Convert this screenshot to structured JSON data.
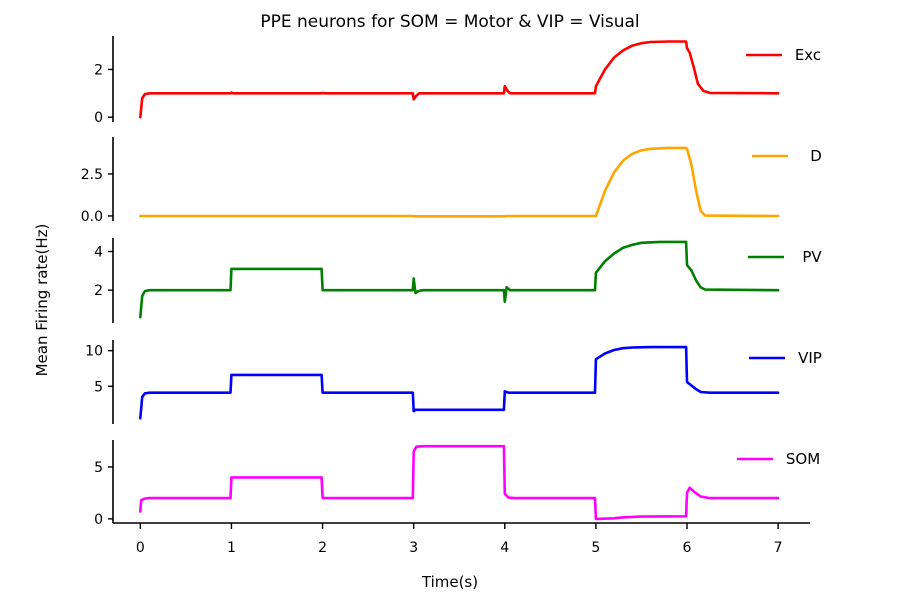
{
  "chart_data": {
    "type": "line",
    "title": "PPE neurons for SOM = Motor & VIP = Visual",
    "xlabel": "Time(s)",
    "ylabel": "Mean Firing rate(Hz)",
    "xlim": [
      -0.3,
      7.35
    ],
    "xticks": [
      0,
      1,
      2,
      3,
      4,
      5,
      6,
      7
    ],
    "xtick_labels": [
      "0",
      "1",
      "2",
      "3",
      "4",
      "5",
      "6",
      "7"
    ],
    "grid": false,
    "legend_position": "top-right of each panel",
    "panels": [
      {
        "name": "Exc",
        "color": "#ff0000",
        "ylim": [
          -0.2,
          3.4
        ],
        "yticks": [
          0,
          2
        ],
        "ytick_labels": [
          "0",
          "2"
        ],
        "points": [
          [
            0,
            0
          ],
          [
            0.02,
            0.8
          ],
          [
            0.05,
            0.97
          ],
          [
            0.1,
            1.0
          ],
          [
            0.99,
            1.0
          ],
          [
            1.0,
            1.03
          ],
          [
            1.02,
            1.0
          ],
          [
            1.99,
            1.0
          ],
          [
            2.0,
            1.02
          ],
          [
            2.02,
            1.0
          ],
          [
            2.99,
            1.0
          ],
          [
            3.0,
            0.75
          ],
          [
            3.03,
            0.9
          ],
          [
            3.06,
            1.0
          ],
          [
            3.99,
            1.0
          ],
          [
            4.0,
            1.3
          ],
          [
            4.03,
            1.1
          ],
          [
            4.06,
            1.0
          ],
          [
            4.99,
            1.0
          ],
          [
            5.0,
            1.3
          ],
          [
            5.1,
            2.0
          ],
          [
            5.2,
            2.5
          ],
          [
            5.3,
            2.8
          ],
          [
            5.4,
            3.0
          ],
          [
            5.5,
            3.1
          ],
          [
            5.6,
            3.15
          ],
          [
            5.8,
            3.17
          ],
          [
            5.99,
            3.17
          ],
          [
            6.0,
            2.9
          ],
          [
            6.03,
            2.7
          ],
          [
            6.08,
            2.0
          ],
          [
            6.12,
            1.4
          ],
          [
            6.18,
            1.1
          ],
          [
            6.25,
            1.02
          ],
          [
            7.0,
            1.0
          ]
        ]
      },
      {
        "name": "D",
        "color": "#ffa500",
        "ylim": [
          -0.3,
          4.7
        ],
        "yticks": [
          0.0,
          2.5
        ],
        "ytick_labels": [
          "0.0",
          "2.5"
        ],
        "points": [
          [
            0,
            0
          ],
          [
            2.99,
            0
          ],
          [
            3.0,
            -0.02
          ],
          [
            4.0,
            -0.02
          ],
          [
            4.01,
            0
          ],
          [
            5.0,
            0
          ],
          [
            5.1,
            1.5
          ],
          [
            5.2,
            2.6
          ],
          [
            5.3,
            3.3
          ],
          [
            5.4,
            3.7
          ],
          [
            5.5,
            3.9
          ],
          [
            5.6,
            4.0
          ],
          [
            5.8,
            4.05
          ],
          [
            5.99,
            4.05
          ],
          [
            6.0,
            4.0
          ],
          [
            6.05,
            3.0
          ],
          [
            6.1,
            1.5
          ],
          [
            6.15,
            0.3
          ],
          [
            6.2,
            0.02
          ],
          [
            7.0,
            0
          ]
        ]
      },
      {
        "name": "PV",
        "color": "#008000",
        "ylim": [
          0.3,
          4.7
        ],
        "yticks": [
          2,
          4
        ],
        "ytick_labels": [
          "2",
          "4"
        ],
        "points": [
          [
            0,
            0.6
          ],
          [
            0.02,
            1.7
          ],
          [
            0.05,
            1.95
          ],
          [
            0.1,
            2.0
          ],
          [
            0.99,
            2.0
          ],
          [
            1.0,
            3.1
          ],
          [
            1.99,
            3.1
          ],
          [
            2.0,
            2.0
          ],
          [
            2.99,
            2.0
          ],
          [
            3.0,
            2.6
          ],
          [
            3.02,
            1.85
          ],
          [
            3.05,
            1.95
          ],
          [
            3.1,
            2.0
          ],
          [
            3.99,
            2.0
          ],
          [
            4.0,
            1.4
          ],
          [
            4.02,
            2.15
          ],
          [
            4.06,
            2.0
          ],
          [
            4.99,
            2.0
          ],
          [
            5.0,
            2.9
          ],
          [
            5.1,
            3.5
          ],
          [
            5.2,
            3.9
          ],
          [
            5.3,
            4.2
          ],
          [
            5.4,
            4.35
          ],
          [
            5.5,
            4.45
          ],
          [
            5.7,
            4.5
          ],
          [
            5.99,
            4.5
          ],
          [
            6.0,
            3.3
          ],
          [
            6.05,
            3.0
          ],
          [
            6.1,
            2.5
          ],
          [
            6.15,
            2.15
          ],
          [
            6.2,
            2.03
          ],
          [
            7.0,
            2.0
          ]
        ]
      },
      {
        "name": "VIP",
        "color": "#0000ff",
        "ylim": [
          -0.3,
          11.5
        ],
        "yticks": [
          5,
          10
        ],
        "ytick_labels": [
          "5",
          "10"
        ],
        "points": [
          [
            0,
            0.5
          ],
          [
            0.02,
            3.5
          ],
          [
            0.05,
            4.0
          ],
          [
            0.1,
            4.1
          ],
          [
            0.99,
            4.1
          ],
          [
            1.0,
            6.6
          ],
          [
            1.99,
            6.6
          ],
          [
            2.0,
            4.1
          ],
          [
            2.99,
            4.1
          ],
          [
            3.0,
            1.5
          ],
          [
            3.02,
            1.7
          ],
          [
            3.99,
            1.7
          ],
          [
            4.0,
            4.3
          ],
          [
            4.04,
            4.1
          ],
          [
            4.99,
            4.1
          ],
          [
            5.0,
            8.8
          ],
          [
            5.1,
            9.6
          ],
          [
            5.2,
            10.1
          ],
          [
            5.3,
            10.35
          ],
          [
            5.4,
            10.45
          ],
          [
            5.6,
            10.5
          ],
          [
            5.99,
            10.5
          ],
          [
            6.0,
            5.6
          ],
          [
            6.05,
            5.1
          ],
          [
            6.1,
            4.6
          ],
          [
            6.15,
            4.2
          ],
          [
            6.25,
            4.1
          ],
          [
            7.0,
            4.1
          ]
        ]
      },
      {
        "name": "SOM",
        "color": "#ff00ff",
        "ylim": [
          -0.4,
          7.6
        ],
        "yticks": [
          0,
          5
        ],
        "ytick_labels": [
          "0",
          "5"
        ],
        "points": [
          [
            0,
            0.7
          ],
          [
            0.01,
            1.8
          ],
          [
            0.05,
            1.95
          ],
          [
            0.1,
            2.0
          ],
          [
            0.99,
            2.0
          ],
          [
            1.0,
            4.0
          ],
          [
            1.99,
            4.0
          ],
          [
            2.0,
            2.0
          ],
          [
            2.99,
            2.0
          ],
          [
            3.0,
            6.5
          ],
          [
            3.03,
            6.95
          ],
          [
            3.1,
            7.0
          ],
          [
            3.99,
            7.0
          ],
          [
            4.0,
            2.4
          ],
          [
            4.04,
            2.05
          ],
          [
            4.1,
            2.0
          ],
          [
            4.99,
            2.0
          ],
          [
            5.0,
            0
          ],
          [
            5.2,
            0.05
          ],
          [
            5.3,
            0.15
          ],
          [
            5.5,
            0.22
          ],
          [
            5.99,
            0.25
          ],
          [
            6.0,
            2.5
          ],
          [
            6.03,
            3.0
          ],
          [
            6.08,
            2.6
          ],
          [
            6.15,
            2.15
          ],
          [
            6.25,
            2.0
          ],
          [
            7.0,
            2.0
          ]
        ]
      }
    ]
  }
}
